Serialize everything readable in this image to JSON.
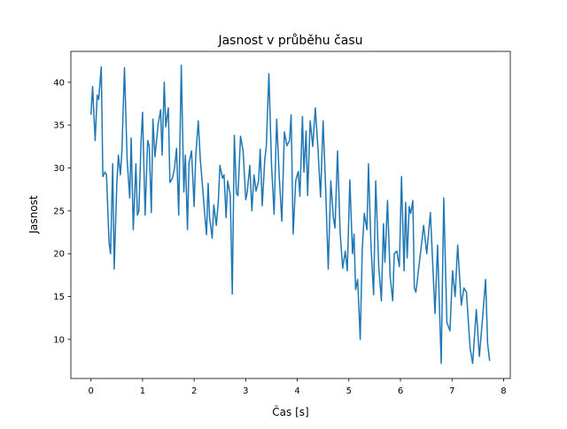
{
  "chart_data": {
    "type": "line",
    "title": "Jasnost v průběhu času",
    "xlabel": "Čas [s]",
    "ylabel": "Jasnost",
    "xlim": [
      -0.39,
      8.13
    ],
    "ylim": [
      5.44,
      43.6
    ],
    "xticks": [
      0,
      1,
      2,
      3,
      4,
      5,
      6,
      7,
      8
    ],
    "yticks": [
      10,
      15,
      20,
      25,
      30,
      35,
      40
    ],
    "grid": false,
    "color": "#1f77b4",
    "series": [
      {
        "name": "Jasnost",
        "x": [
          0,
          0.03,
          0.08,
          0.12,
          0.15,
          0.2,
          0.23,
          0.27,
          0.3,
          0.35,
          0.38,
          0.42,
          0.45,
          0.5,
          0.53,
          0.57,
          0.6,
          0.65,
          0.7,
          0.75,
          0.78,
          0.82,
          0.87,
          0.9,
          0.93,
          0.97,
          1.0,
          1.05,
          1.1,
          1.13,
          1.17,
          1.2,
          1.24,
          1.3,
          1.35,
          1.38,
          1.42,
          1.45,
          1.5,
          1.53,
          1.58,
          1.62,
          1.66,
          1.7,
          1.75,
          1.8,
          1.83,
          1.87,
          1.9,
          1.95,
          2.0,
          2.03,
          2.08,
          2.12,
          2.16,
          2.2,
          2.24,
          2.27,
          2.3,
          2.35,
          2.38,
          2.43,
          2.47,
          2.5,
          2.55,
          2.58,
          2.62,
          2.65,
          2.7,
          2.74,
          2.78,
          2.82,
          2.85,
          2.9,
          2.95,
          3.0,
          3.03,
          3.08,
          3.12,
          3.16,
          3.2,
          3.25,
          3.28,
          3.32,
          3.37,
          3.4,
          3.45,
          3.5,
          3.55,
          3.6,
          3.65,
          3.7,
          3.75,
          3.8,
          3.85,
          3.88,
          3.92,
          3.97,
          4.02,
          4.05,
          4.1,
          4.13,
          4.17,
          4.2,
          4.25,
          4.3,
          4.35,
          4.4,
          4.45,
          4.5,
          4.55,
          4.6,
          4.65,
          4.7,
          4.73,
          4.78,
          4.83,
          4.88,
          4.93,
          4.97,
          5.02,
          5.07,
          5.1,
          5.13,
          5.17,
          5.22,
          5.26,
          5.3,
          5.35,
          5.38,
          5.43,
          5.48,
          5.52,
          5.58,
          5.63,
          5.67,
          5.7,
          5.75,
          5.8,
          5.85,
          5.88,
          5.93,
          5.98,
          6.02,
          6.07,
          6.1,
          6.13,
          6.17,
          6.2,
          6.24,
          6.27,
          6.3,
          6.45,
          6.51,
          6.58,
          6.67,
          6.72,
          6.79,
          6.84,
          6.9,
          6.96,
          7.01,
          7.06,
          7.11,
          7.18,
          7.23,
          7.28,
          7.35,
          7.4,
          7.47,
          7.53,
          7.6,
          7.65,
          7.69,
          7.73
        ],
        "y": [
          36.2,
          39.5,
          33.2,
          38.5,
          38,
          41.8,
          29,
          29.5,
          29.2,
          21.3,
          20,
          30.5,
          18.2,
          28,
          31.5,
          29.2,
          32,
          41.7,
          31,
          26.5,
          33.5,
          22.8,
          30.5,
          24.5,
          25,
          33,
          36.5,
          24.5,
          33.2,
          32.5,
          24.8,
          35.7,
          31.3,
          35,
          36.8,
          31.5,
          40,
          34.8,
          37,
          28.3,
          28.8,
          30,
          32.3,
          24.5,
          42,
          27.2,
          31.5,
          22.8,
          30.5,
          32,
          25.5,
          31.3,
          35.5,
          31,
          28,
          25,
          22.2,
          28.2,
          24.2,
          21.8,
          25.7,
          23.3,
          26.2,
          30.3,
          28.8,
          29.2,
          24.2,
          28.5,
          26.8,
          15.3,
          33.8,
          27,
          26.8,
          33.7,
          32,
          26.3,
          27.2,
          30.3,
          25,
          29.2,
          27.3,
          28.5,
          32.2,
          25.6,
          31,
          32.5,
          41,
          30.3,
          24.6,
          35.7,
          29,
          23.8,
          34.2,
          32.6,
          33.2,
          36.2,
          22.3,
          28.5,
          29.6,
          26.7,
          36,
          29.5,
          34.3,
          26.8,
          35.5,
          32.5,
          37,
          32.3,
          26.6,
          35.5,
          27.5,
          18.2,
          28.5,
          24.2,
          23,
          32,
          22.5,
          18.3,
          20.3,
          18,
          28.6,
          20,
          22.3,
          15.8,
          17,
          10,
          20.5,
          24.7,
          22.8,
          30.5,
          20.8,
          15.2,
          28.5,
          18.5,
          14.5,
          23.5,
          19,
          26.2,
          17.3,
          14.5,
          20,
          20.3,
          18.5,
          29,
          18,
          26,
          19.5,
          25.5,
          24.7,
          26.2,
          16,
          15.5,
          23.3,
          20,
          24.8,
          13,
          21,
          7.2,
          26.5,
          12,
          11,
          18,
          15,
          21,
          14,
          16,
          15.5,
          9,
          7.2,
          13.5,
          8,
          13,
          17,
          9.5,
          7.5
        ]
      }
    ]
  }
}
